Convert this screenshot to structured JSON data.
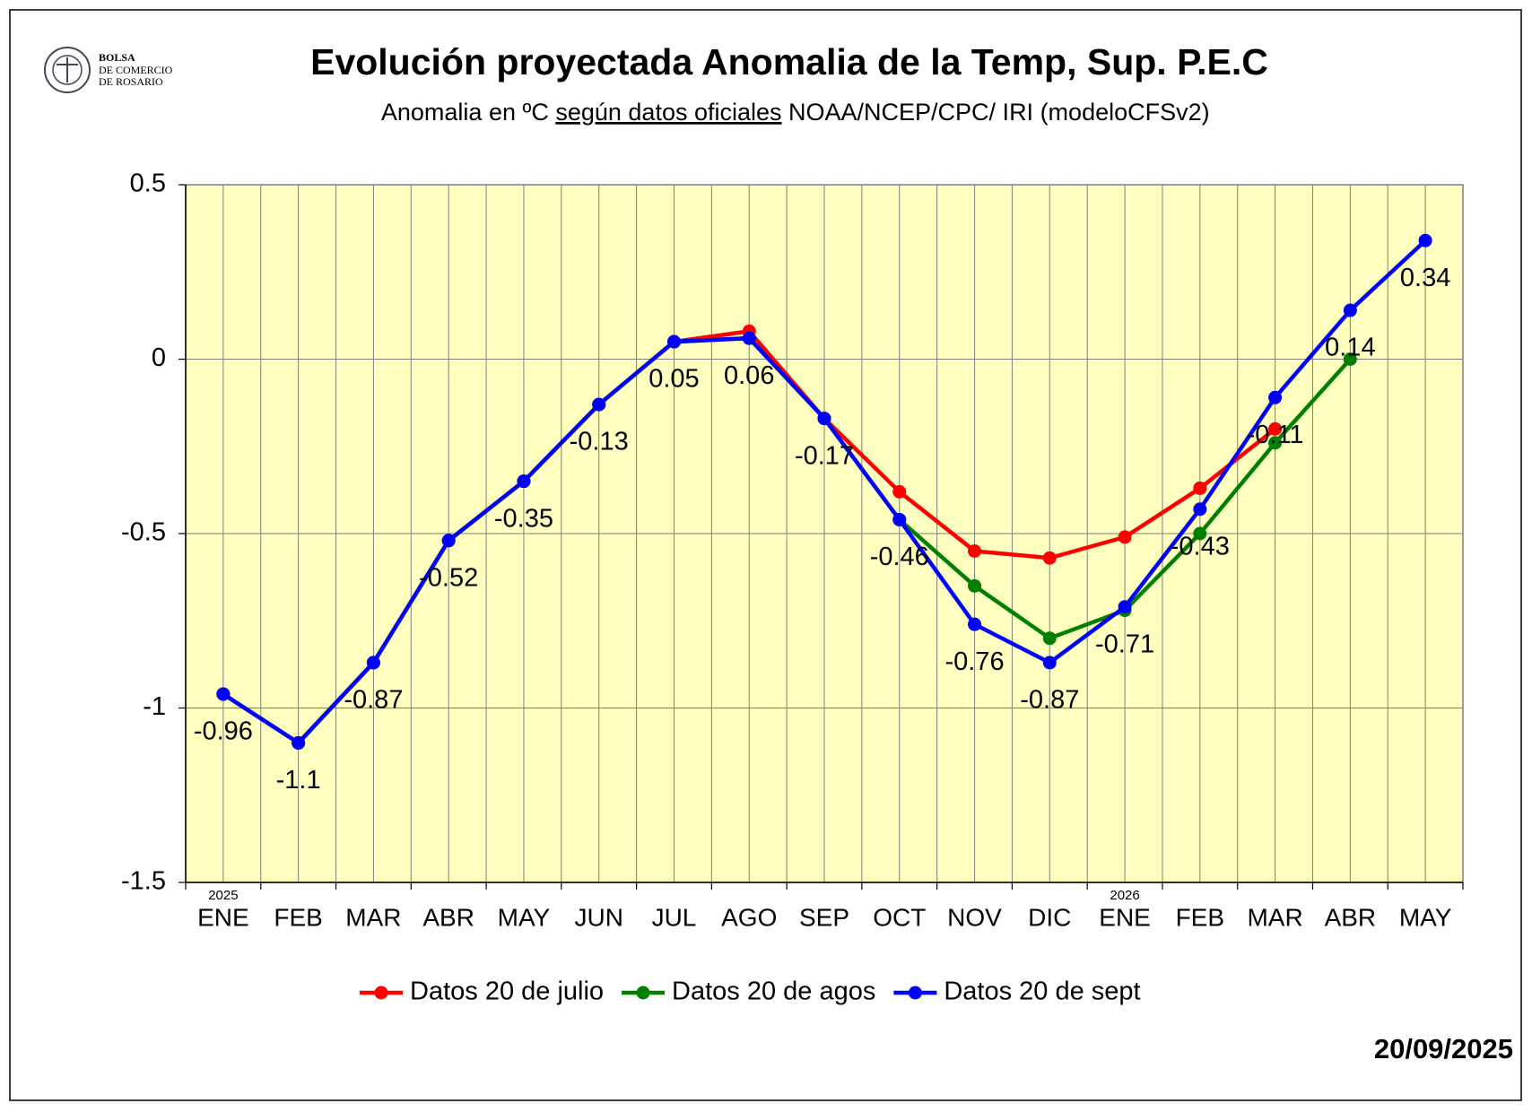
{
  "logo_text": [
    "BOLSA",
    "DE COMERCIO",
    "DE ROSARIO"
  ],
  "date": "20/09/2025",
  "chart_data": {
    "type": "line",
    "title": "Evolución proyectada Anomalia de la Temp, Sup.  P.E.C",
    "subtitle_parts": [
      "Anomalia en ºC ",
      "según datos oficiales",
      " NOAA/NCEP/CPC/ IRI (modeloCFSv2)"
    ],
    "categories": [
      "ENE",
      "FEB",
      "MAR",
      "ABR",
      "MAY",
      "JUN",
      "JUL",
      "AGO",
      "SEP",
      "OCT",
      "NOV",
      "DIC",
      "ENE",
      "FEB",
      "MAR",
      "ABR",
      "MAY"
    ],
    "category_years": [
      "2025",
      null,
      null,
      null,
      null,
      null,
      null,
      null,
      null,
      null,
      null,
      null,
      "2026",
      null,
      null,
      null,
      null
    ],
    "ylim": [
      -1.5,
      0.5
    ],
    "yticks": [
      0.5,
      0,
      -0.5,
      -1,
      -1.5
    ],
    "grid": true,
    "legend_position": "bottom",
    "plot_background": "#ffffc0",
    "labeled_series": 2,
    "series": [
      {
        "name": "Datos 20 de julio",
        "color": "#ff0000",
        "values": [
          -0.96,
          -1.1,
          -0.87,
          -0.52,
          -0.35,
          -0.13,
          0.05,
          0.08,
          -0.17,
          -0.38,
          -0.55,
          -0.57,
          -0.51,
          -0.37,
          -0.2,
          null,
          null
        ]
      },
      {
        "name": "Datos 20 de agos",
        "color": "#008000",
        "values": [
          -0.96,
          -1.1,
          -0.87,
          -0.52,
          -0.35,
          -0.13,
          0.05,
          0.06,
          -0.17,
          -0.46,
          -0.65,
          -0.8,
          -0.72,
          -0.5,
          -0.24,
          0,
          null
        ]
      },
      {
        "name": "Datos 20 de sept",
        "color": "#0000ff",
        "values": [
          -0.96,
          -1.1,
          -0.87,
          -0.52,
          -0.35,
          -0.13,
          0.05,
          0.06,
          -0.17,
          -0.46,
          -0.76,
          -0.87,
          -0.71,
          -0.43,
          -0.11,
          0.14,
          0.34
        ]
      }
    ]
  }
}
